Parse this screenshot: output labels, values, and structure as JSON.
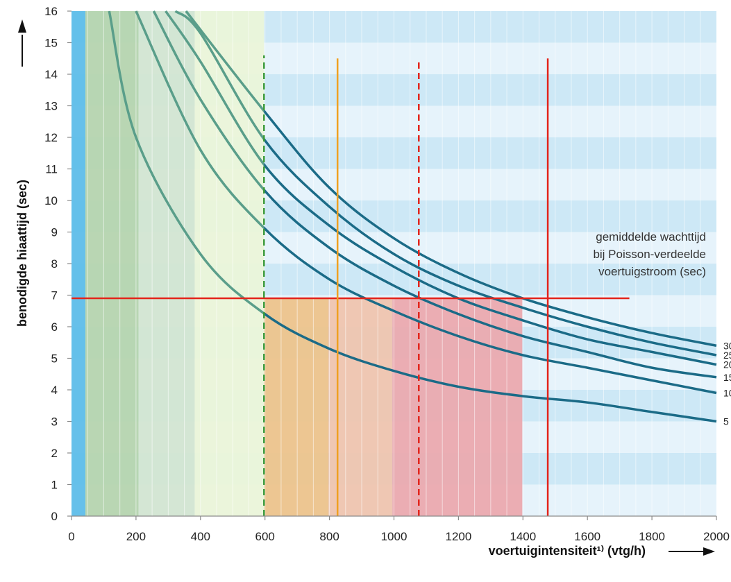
{
  "chart_data": {
    "type": "line",
    "xlabel": "voertuigintensiteit¹⁾ (vtg/h)",
    "ylabel": "benodigde hiaattijd (sec)",
    "xlim": [
      0,
      2000
    ],
    "ylim": [
      0,
      16
    ],
    "x_ticks": [
      "0",
      "200",
      "400",
      "600",
      "800",
      "1000",
      "1200",
      "1400",
      "1600",
      "1800",
      "2000"
    ],
    "y_ticks": [
      "0",
      "1",
      "2",
      "3",
      "4",
      "5",
      "6",
      "7",
      "8",
      "9",
      "10",
      "11",
      "12",
      "13",
      "14",
      "15",
      "16"
    ],
    "annotation": [
      "gemiddelde wachttijd",
      "bij Poisson-verdeelde",
      "voertuigstroom (sec)"
    ],
    "series": [
      {
        "name": "5",
        "points": [
          [
            117,
            16.0
          ],
          [
            200,
            12.0
          ],
          [
            400,
            8.3
          ],
          [
            600,
            6.4
          ],
          [
            800,
            5.3
          ],
          [
            1000,
            4.6
          ],
          [
            1200,
            4.1
          ],
          [
            1400,
            3.8
          ],
          [
            1600,
            3.6
          ],
          [
            1800,
            3.3
          ],
          [
            2000,
            3.0
          ]
        ]
      },
      {
        "name": "10",
        "points": [
          [
            200,
            16.0
          ],
          [
            400,
            11.6
          ],
          [
            600,
            9.1
          ],
          [
            800,
            7.5
          ],
          [
            1000,
            6.5
          ],
          [
            1200,
            5.7
          ],
          [
            1400,
            5.1
          ],
          [
            1600,
            4.7
          ],
          [
            1800,
            4.3
          ],
          [
            2000,
            3.9
          ]
        ]
      },
      {
        "name": "15",
        "points": [
          [
            255,
            16.0
          ],
          [
            400,
            13.2
          ],
          [
            600,
            10.3
          ],
          [
            800,
            8.5
          ],
          [
            1000,
            7.3
          ],
          [
            1200,
            6.4
          ],
          [
            1400,
            5.7
          ],
          [
            1600,
            5.2
          ],
          [
            1800,
            4.7
          ],
          [
            2000,
            4.4
          ]
        ]
      },
      {
        "name": "20",
        "points": [
          [
            292,
            16.0
          ],
          [
            400,
            14.4
          ],
          [
            600,
            11.1
          ],
          [
            800,
            9.2
          ],
          [
            1000,
            7.9
          ],
          [
            1200,
            6.9
          ],
          [
            1400,
            6.2
          ],
          [
            1600,
            5.6
          ],
          [
            1800,
            5.2
          ],
          [
            2000,
            4.8
          ]
        ]
      },
      {
        "name": "25",
        "points": [
          [
            322,
            16.0
          ],
          [
            400,
            15.3
          ],
          [
            600,
            11.9
          ],
          [
            800,
            9.8
          ],
          [
            1000,
            8.3
          ],
          [
            1200,
            7.3
          ],
          [
            1400,
            6.6
          ],
          [
            1600,
            6.0
          ],
          [
            1800,
            5.5
          ],
          [
            2000,
            5.1
          ]
        ]
      },
      {
        "name": "30",
        "points": [
          [
            355,
            16.0
          ],
          [
            600,
            12.8
          ],
          [
            800,
            10.4
          ],
          [
            1000,
            8.8
          ],
          [
            1200,
            7.7
          ],
          [
            1400,
            6.9
          ],
          [
            1600,
            6.3
          ],
          [
            1800,
            5.8
          ],
          [
            2000,
            5.4
          ]
        ]
      }
    ],
    "reference_lines": [
      {
        "orientation": "horizontal",
        "value": 6.9,
        "x_extent": [
          0,
          1730
        ],
        "style": "solid",
        "color": "#e3241b"
      },
      {
        "orientation": "vertical",
        "value": 597,
        "y_extent": [
          0,
          14.6
        ],
        "style": "dashed",
        "color": "#3a9a3a"
      },
      {
        "orientation": "vertical",
        "value": 825,
        "y_extent": [
          0,
          14.5
        ],
        "style": "solid",
        "color": "#f0a020"
      },
      {
        "orientation": "vertical",
        "value": 1077,
        "y_extent": [
          0,
          14.5
        ],
        "style": "dashed",
        "color": "#e3241b"
      },
      {
        "orientation": "vertical",
        "value": 1477,
        "y_extent": [
          0,
          14.5
        ],
        "style": "solid",
        "color": "#e3241b"
      }
    ],
    "bands": [
      {
        "x_range": [
          0,
          43
        ],
        "color": "#5bbce8"
      },
      {
        "x_range": [
          43,
          208
        ],
        "color": "#b5d4ad"
      },
      {
        "x_range": [
          208,
          382
        ],
        "color": "#d2e5d0"
      },
      {
        "x_range": [
          382,
          597
        ],
        "color": "#ecf5d8"
      },
      {
        "x_range": [
          597,
          797
        ],
        "y_range": [
          0,
          6.9
        ],
        "color": "#eec289"
      },
      {
        "x_range": [
          797,
          995
        ],
        "y_range": [
          0,
          6.9
        ],
        "color": "#f0c3ad"
      },
      {
        "x_range": [
          995,
          1398
        ],
        "y_range": [
          0,
          6.9
        ],
        "color": "#eca7ad"
      }
    ],
    "grid": true,
    "stripes": {
      "light": "#e6f3fb",
      "dark": "#cde8f6"
    },
    "curve_color": "#1b6b87",
    "curve_color_faded": "#5a9e8a"
  }
}
